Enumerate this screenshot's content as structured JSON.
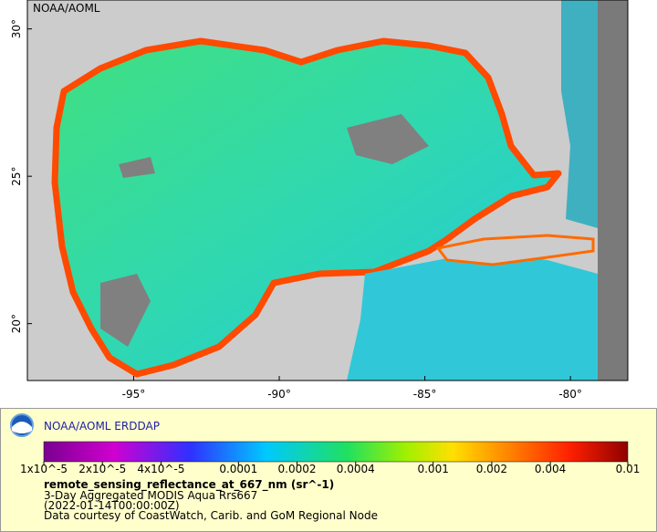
{
  "map": {
    "label": "NOAA/AOML",
    "xlim": [
      -98.65,
      -78.03
    ],
    "ylim": [
      18.07,
      30.98
    ],
    "xticks": [
      {
        "value": -95,
        "label": "-95°"
      },
      {
        "value": -90,
        "label": "-90°"
      },
      {
        "value": -85,
        "label": "-85°"
      },
      {
        "value": -80,
        "label": "-80°"
      }
    ],
    "yticks": [
      {
        "value": 20,
        "label": "20°"
      },
      {
        "value": 25,
        "label": "25°"
      },
      {
        "value": 30,
        "label": "30°"
      }
    ]
  },
  "legend": {
    "title": "NOAA/AOML ERDDAP",
    "colorbar": {
      "scale": "log",
      "lim": [
        1e-05,
        0.01
      ],
      "ticks": [
        {
          "value": 1e-05,
          "label": "1x10^-5"
        },
        {
          "value": 2e-05,
          "label": "2x10^-5"
        },
        {
          "value": 4e-05,
          "label": "4x10^-5"
        },
        0.0001,
        0.0002,
        0.0004,
        0.001,
        0.002,
        0.004,
        0.01
      ]
    },
    "variable": "remote_sensing_reflectance_at_667_nm (sr^-1)",
    "lines": [
      "3-Day Aggregated MODIS Aqua Rrs667",
      "(2022-01-14T00:00:00Z)",
      "Data courtesy of CoastWatch, Carib. and GoM Regional Node"
    ]
  }
}
